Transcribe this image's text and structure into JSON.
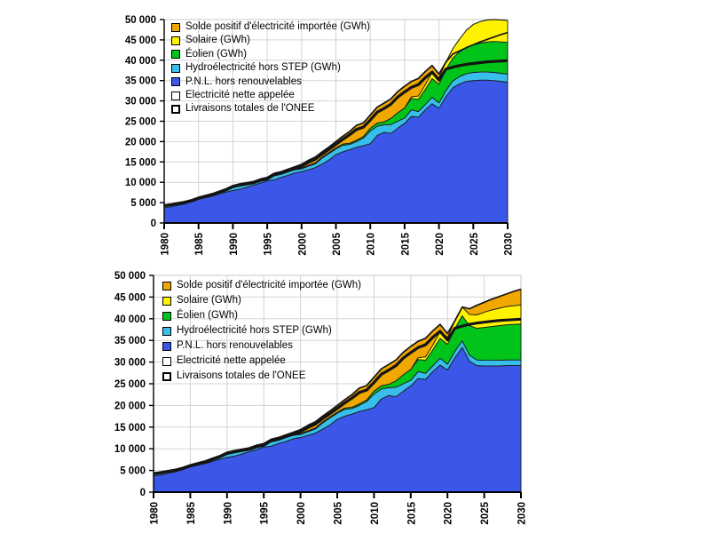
{
  "page": {
    "background": "#ffffff"
  },
  "axes": {
    "ylim": [
      0,
      50000
    ],
    "yticks": [
      "0",
      "5 000",
      "10 000",
      "15 000",
      "20 000",
      "25 000",
      "30 000",
      "35 000",
      "40 000",
      "45 000",
      "50 000"
    ],
    "xticks": [
      1980,
      1985,
      1990,
      1995,
      2000,
      2005,
      2010,
      2015,
      2020,
      2025,
      2030
    ]
  },
  "colors": {
    "imports": "#F0A800",
    "solar": "#FFF200",
    "wind": "#00C41A",
    "hydro": "#38BEEA",
    "pnl": "#3A57E8",
    "line": "#141414",
    "grid": "#d4d4d4"
  },
  "chart_data": [
    {
      "type": "area",
      "title": "",
      "xlabel": "",
      "ylabel": "",
      "ylim": [
        0,
        50000
      ],
      "grid": true,
      "legend_position": "top-left-inside",
      "years": [
        1980,
        1981,
        1982,
        1983,
        1984,
        1985,
        1986,
        1987,
        1988,
        1989,
        1990,
        1991,
        1992,
        1993,
        1994,
        1995,
        1996,
        1997,
        1998,
        1999,
        2000,
        2001,
        2002,
        2003,
        2004,
        2005,
        2006,
        2007,
        2008,
        2009,
        2010,
        2011,
        2012,
        2013,
        2014,
        2015,
        2016,
        2017,
        2018,
        2019,
        2020,
        2021,
        2022,
        2023,
        2024,
        2025,
        2026,
        2027,
        2028,
        2029,
        2030
      ],
      "series": [
        {
          "name": "P.N.L. hors renouvelables",
          "color": "#3A57E8",
          "values": [
            3700,
            4000,
            4350,
            4700,
            5200,
            5800,
            6200,
            6600,
            7100,
            7600,
            8000,
            8300,
            8800,
            9300,
            9800,
            10400,
            10600,
            11200,
            11700,
            12300,
            12600,
            13100,
            13600,
            14500,
            15500,
            16800,
            17500,
            18000,
            18600,
            19000,
            19500,
            21500,
            22300,
            22000,
            23300,
            24500,
            26200,
            26000,
            27800,
            29300,
            28200,
            31000,
            33200,
            34200,
            34800,
            35000,
            35100,
            35100,
            35000,
            34800,
            34600
          ]
        },
        {
          "name": "Hydroélectricité hors STEP (GWh)",
          "color": "#38BEEA",
          "values": [
            700,
            650,
            600,
            550,
            500,
            500,
            550,
            600,
            700,
            800,
            1200,
            1300,
            900,
            600,
            700,
            500,
            1400,
            1100,
            1000,
            800,
            700,
            850,
            950,
            1450,
            1600,
            1400,
            1600,
            1300,
            1400,
            1900,
            3100,
            2300,
            1800,
            2200,
            1700,
            1300,
            1600,
            1400,
            1300,
            1600,
            1300,
            1500,
            1700,
            1800,
            1900,
            2000,
            2000,
            2000,
            2000,
            2000,
            2000
          ]
        },
        {
          "name": "Éolien (GWh)",
          "color": "#00C41A",
          "values": [
            0,
            0,
            0,
            0,
            0,
            0,
            0,
            0,
            0,
            0,
            0,
            0,
            0,
            0,
            0,
            0,
            0,
            0,
            50,
            150,
            200,
            200,
            250,
            250,
            250,
            250,
            300,
            300,
            350,
            350,
            700,
            750,
            750,
            1500,
            2100,
            2500,
            2800,
            3000,
            3700,
            4600,
            4600,
            5200,
            5600,
            6100,
            6500,
            6800,
            7100,
            7400,
            7600,
            7700,
            7800
          ]
        },
        {
          "name": "Solaire (GWh)",
          "color": "#FFF200",
          "values": [
            0,
            0,
            0,
            0,
            0,
            0,
            0,
            0,
            0,
            0,
            0,
            0,
            0,
            0,
            0,
            0,
            0,
            0,
            0,
            0,
            0,
            0,
            0,
            0,
            0,
            0,
            0,
            0,
            0,
            0,
            0,
            0,
            0,
            0,
            0,
            0,
            400,
            800,
            1100,
            1500,
            1600,
            1800,
            2300,
            3100,
            4200,
            5000,
            5300,
            5400,
            5400,
            5400,
            5400
          ]
        },
        {
          "name": "Solde positif d'électricité importée (GWh)",
          "color": "#F0A800",
          "values": [
            0,
            0,
            0,
            0,
            0,
            0,
            0,
            0,
            0,
            0,
            0,
            0,
            200,
            300,
            300,
            300,
            200,
            300,
            450,
            550,
            900,
            1250,
            1400,
            1300,
            1350,
            1550,
            1900,
            2900,
            3650,
            3350,
            3200,
            3900,
            4600,
            4800,
            5200,
            5300,
            3800,
            4300,
            3300,
            1700,
            900,
            0,
            0,
            0,
            0,
            0,
            0,
            0,
            0,
            0,
            0
          ]
        }
      ],
      "lines": [
        {
          "name": "Electricité nette appelée",
          "style": "thin",
          "color": "#141414",
          "values": [
            4400,
            4650,
            4950,
            5250,
            5700,
            6300,
            6750,
            7200,
            7800,
            8400,
            9200,
            9600,
            9900,
            10200,
            10800,
            11200,
            12200,
            12600,
            13200,
            13800,
            14400,
            15400,
            16200,
            17500,
            18700,
            20000,
            21300,
            22500,
            24000,
            24600,
            26500,
            28450,
            29450,
            30500,
            32300,
            33600,
            34800,
            35500,
            37200,
            38700,
            36600,
            39500,
            41500,
            42300,
            43100,
            43800,
            44500,
            45100,
            45700,
            46300,
            46800
          ]
        },
        {
          "name": "Livraisons totales de l'ONEE",
          "style": "thick",
          "color": "#141414",
          "values": [
            4250,
            4500,
            4800,
            5080,
            5520,
            6100,
            6530,
            6970,
            7550,
            8130,
            8900,
            9290,
            9580,
            9870,
            10450,
            10850,
            11820,
            12200,
            12780,
            13360,
            13950,
            14900,
            15680,
            16950,
            18100,
            19300,
            20550,
            21700,
            23000,
            23550,
            25300,
            27200,
            28150,
            29200,
            30950,
            32200,
            33350,
            34000,
            35700,
            37100,
            35100,
            37800,
            38300,
            38700,
            39000,
            39200,
            39400,
            39600,
            39700,
            39800,
            39900
          ]
        }
      ],
      "legend": [
        {
          "label": "Solde positif d'électricité importée (GWh)",
          "type": "fill",
          "color": "#F0A800"
        },
        {
          "label": "Solaire (GWh)",
          "type": "fill",
          "color": "#FFF200"
        },
        {
          "label": "Éolien (GWh)",
          "type": "fill",
          "color": "#00C41A"
        },
        {
          "label": "Hydroélectricité hors STEP (GWh)",
          "type": "fill",
          "color": "#38BEEA"
        },
        {
          "label": "P.N.L. hors renouvelables",
          "type": "fill",
          "color": "#3A57E8"
        },
        {
          "label": "Electricité nette appelée",
          "type": "line-thin",
          "color": "#141414"
        },
        {
          "label": "Livraisons totales de l'ONEE",
          "type": "line-thick",
          "color": "#141414"
        }
      ]
    },
    {
      "type": "area",
      "title": "",
      "xlabel": "",
      "ylabel": "",
      "ylim": [
        0,
        50000
      ],
      "grid": true,
      "legend_position": "top-left-inside",
      "years": [
        1980,
        1981,
        1982,
        1983,
        1984,
        1985,
        1986,
        1987,
        1988,
        1989,
        1990,
        1991,
        1992,
        1993,
        1994,
        1995,
        1996,
        1997,
        1998,
        1999,
        2000,
        2001,
        2002,
        2003,
        2004,
        2005,
        2006,
        2007,
        2008,
        2009,
        2010,
        2011,
        2012,
        2013,
        2014,
        2015,
        2016,
        2017,
        2018,
        2019,
        2020,
        2021,
        2022,
        2023,
        2024,
        2025,
        2026,
        2027,
        2028,
        2029,
        2030
      ],
      "series": [
        {
          "name": "P.N.L. hors renouvelables",
          "color": "#3A57E8",
          "values": [
            3700,
            4000,
            4350,
            4700,
            5200,
            5800,
            6200,
            6600,
            7100,
            7600,
            8000,
            8300,
            8800,
            9300,
            9800,
            10400,
            10600,
            11200,
            11700,
            12300,
            12600,
            13100,
            13600,
            14500,
            15500,
            16800,
            17500,
            18000,
            18600,
            19000,
            19500,
            21500,
            22300,
            22000,
            23300,
            24500,
            26200,
            26000,
            27800,
            29300,
            28200,
            31000,
            33400,
            30200,
            29200,
            29100,
            29100,
            29100,
            29200,
            29200,
            29200
          ]
        },
        {
          "name": "Hydroélectricité hors STEP (GWh)",
          "color": "#38BEEA",
          "values": [
            700,
            650,
            600,
            550,
            500,
            500,
            550,
            600,
            700,
            800,
            1200,
            1300,
            900,
            600,
            700,
            500,
            1400,
            1100,
            1000,
            800,
            700,
            850,
            950,
            1450,
            1600,
            1400,
            1600,
            1300,
            1400,
            1900,
            3100,
            2300,
            1800,
            2200,
            1700,
            1300,
            1600,
            1400,
            1300,
            1600,
            1300,
            1500,
            1500,
            1400,
            1300,
            1300,
            1300,
            1300,
            1300,
            1300,
            1300
          ]
        },
        {
          "name": "Éolien (GWh)",
          "color": "#00C41A",
          "values": [
            0,
            0,
            0,
            0,
            0,
            0,
            0,
            0,
            0,
            0,
            0,
            0,
            0,
            0,
            0,
            0,
            0,
            0,
            50,
            150,
            200,
            200,
            250,
            250,
            250,
            250,
            300,
            300,
            350,
            350,
            700,
            750,
            750,
            1500,
            2100,
            2500,
            2800,
            3000,
            3700,
            4600,
            4600,
            5200,
            5800,
            6800,
            7300,
            7600,
            7800,
            8000,
            8100,
            8200,
            8300
          ]
        },
        {
          "name": "Solaire (GWh)",
          "color": "#FFF200",
          "values": [
            0,
            0,
            0,
            0,
            0,
            0,
            0,
            0,
            0,
            0,
            0,
            0,
            0,
            0,
            0,
            0,
            0,
            0,
            0,
            0,
            0,
            0,
            0,
            0,
            0,
            0,
            0,
            0,
            0,
            0,
            0,
            0,
            0,
            0,
            0,
            0,
            400,
            800,
            1100,
            1500,
            1600,
            1800,
            2000,
            2600,
            3100,
            3500,
            3800,
            4000,
            4200,
            4300,
            4400
          ]
        },
        {
          "name": "Solde positif d'électricité importée (GWh)",
          "color": "#F0A800",
          "values": [
            0,
            0,
            0,
            0,
            0,
            0,
            0,
            0,
            0,
            0,
            0,
            0,
            200,
            300,
            300,
            300,
            200,
            300,
            450,
            550,
            900,
            1250,
            1400,
            1300,
            1350,
            1550,
            1900,
            2900,
            3650,
            3350,
            3200,
            3900,
            4600,
            4800,
            5200,
            5300,
            3800,
            4300,
            3300,
            1700,
            900,
            0,
            0,
            1300,
            2200,
            2300,
            2500,
            2700,
            2900,
            3300,
            3600
          ]
        }
      ],
      "lines": [
        {
          "name": "Electricité nette appelée",
          "style": "thin",
          "color": "#141414",
          "values": [
            4400,
            4650,
            4950,
            5250,
            5700,
            6300,
            6750,
            7200,
            7800,
            8400,
            9200,
            9600,
            9900,
            10200,
            10800,
            11200,
            12200,
            12600,
            13200,
            13800,
            14400,
            15400,
            16200,
            17500,
            18700,
            20000,
            21300,
            22500,
            24000,
            24600,
            26500,
            28450,
            29450,
            30500,
            32300,
            33600,
            34800,
            35500,
            37200,
            38700,
            36600,
            39500,
            42700,
            42300,
            43100,
            43800,
            44500,
            45100,
            45700,
            46300,
            46800
          ]
        },
        {
          "name": "Livraisons totales de l'ONEE",
          "style": "thick",
          "color": "#141414",
          "values": [
            4250,
            4500,
            4800,
            5080,
            5520,
            6100,
            6530,
            6970,
            7550,
            8130,
            8900,
            9290,
            9580,
            9870,
            10450,
            10850,
            11820,
            12200,
            12780,
            13360,
            13950,
            14900,
            15680,
            16950,
            18100,
            19300,
            20550,
            21700,
            23000,
            23550,
            25300,
            27200,
            28150,
            29200,
            30950,
            32200,
            33350,
            34000,
            35700,
            37100,
            35100,
            37800,
            38300,
            38700,
            39000,
            39200,
            39400,
            39600,
            39700,
            39800,
            39900
          ]
        }
      ],
      "legend": [
        {
          "label": "Solde positif d'électricité importée (GWh)",
          "type": "fill",
          "color": "#F0A800"
        },
        {
          "label": "Solaire (GWh)",
          "type": "fill",
          "color": "#FFF200"
        },
        {
          "label": "Éolien (GWh)",
          "type": "fill",
          "color": "#00C41A"
        },
        {
          "label": "Hydroélectricité hors STEP (GWh)",
          "type": "fill",
          "color": "#38BEEA"
        },
        {
          "label": "P.N.L. hors renouvelables",
          "type": "fill",
          "color": "#3A57E8"
        },
        {
          "label": "Electricité nette appelée",
          "type": "line-thin",
          "color": "#141414"
        },
        {
          "label": "Livraisons totales de l'ONEE",
          "type": "line-thick",
          "color": "#141414"
        }
      ]
    }
  ]
}
